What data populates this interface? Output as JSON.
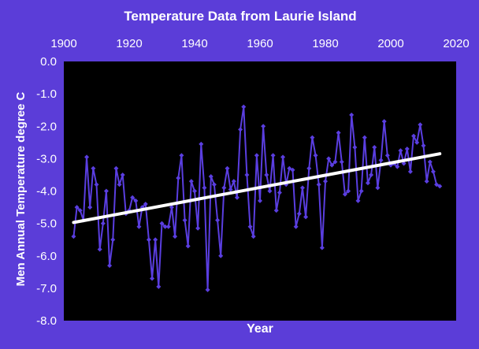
{
  "chart_data": {
    "type": "line",
    "title": "Temperature Data from Laurie Island",
    "xlabel": "Year",
    "ylabel": "Men Annual Temperature degree C",
    "xlim": [
      1900,
      2020
    ],
    "ylim": [
      -8.0,
      0.0
    ],
    "x_ticks": [
      "1900",
      "1920",
      "1940",
      "1960",
      "1980",
      "2000",
      "2020"
    ],
    "y_ticks": [
      "0.0",
      "-1.0",
      "-2.0",
      "-3.0",
      "-4.0",
      "-5.0",
      "-6.0",
      "-7.0",
      "-8.0"
    ],
    "x_axis_position": "top",
    "grid": false,
    "legend": "none",
    "colors": {
      "background": "#5b3dd8",
      "plot_area": "#000000",
      "series": "#5a3ee0",
      "trend": "#ffffff",
      "text": "#ffffff"
    },
    "series": [
      {
        "x": [
          1903,
          1904,
          1905,
          1906,
          1907,
          1908,
          1909,
          1910,
          1911,
          1912,
          1913,
          1914,
          1915,
          1916,
          1917,
          1918,
          1919,
          1920,
          1921,
          1922,
          1923,
          1924,
          1925,
          1926,
          1927,
          1928,
          1929,
          1930,
          1931,
          1932,
          1933,
          1934,
          1935,
          1936,
          1937,
          1938,
          1939,
          1940,
          1941,
          1942,
          1943,
          1944,
          1945,
          1946,
          1947,
          1948,
          1949,
          1950,
          1951,
          1952,
          1953,
          1954,
          1955,
          1956,
          1957,
          1958,
          1959,
          1960,
          1961,
          1962,
          1963,
          1964,
          1965,
          1966,
          1967,
          1968,
          1969,
          1970,
          1971,
          1972,
          1973,
          1974,
          1975,
          1976,
          1977,
          1978,
          1979,
          1980,
          1981,
          1982,
          1983,
          1984,
          1985,
          1986,
          1987,
          1988,
          1989,
          1990,
          1991,
          1992,
          1993,
          1994,
          1995,
          1996,
          1997,
          1998,
          1999,
          2000,
          2001,
          2002,
          2003,
          2004,
          2005,
          2006,
          2007,
          2008,
          2009,
          2010,
          2011,
          2012,
          2013,
          2014,
          2015
        ],
        "values": [
          -5.4,
          -4.5,
          -4.6,
          -4.9,
          -2.95,
          -4.5,
          -3.3,
          -3.8,
          -5.8,
          -5.0,
          -4.0,
          -6.3,
          -5.5,
          -3.3,
          -3.8,
          -3.5,
          -4.7,
          -4.6,
          -4.2,
          -4.3,
          -5.1,
          -4.5,
          -4.4,
          -5.5,
          -6.7,
          -5.5,
          -6.95,
          -5.0,
          -5.1,
          -5.1,
          -4.5,
          -5.4,
          -3.6,
          -2.9,
          -4.9,
          -5.7,
          -3.7,
          -4.0,
          -5.15,
          -2.55,
          -3.9,
          -7.05,
          -3.55,
          -3.8,
          -4.9,
          -6.0,
          -3.9,
          -3.3,
          -3.95,
          -3.7,
          -4.2,
          -2.1,
          -1.4,
          -3.5,
          -5.1,
          -5.4,
          -2.9,
          -4.3,
          -2.0,
          -3.5,
          -4.0,
          -2.9,
          -4.6,
          -4.05,
          -2.95,
          -3.8,
          -3.3,
          -3.35,
          -5.1,
          -4.7,
          -3.9,
          -4.8,
          -3.3,
          -2.35,
          -2.9,
          -3.8,
          -5.75,
          -3.7,
          -3.0,
          -3.2,
          -3.1,
          -2.2,
          -3.1,
          -4.1,
          -4.0,
          -1.65,
          -2.65,
          -4.3,
          -4.0,
          -2.35,
          -3.75,
          -3.5,
          -2.65,
          -3.9,
          -3.05,
          -1.85,
          -2.9,
          -3.2,
          -3.15,
          -3.25,
          -2.75,
          -3.15,
          -2.7,
          -3.4,
          -2.3,
          -2.5,
          -1.95,
          -2.6,
          -3.7,
          -3.1,
          -3.4,
          -3.8,
          -3.85
        ]
      }
    ],
    "trendline": {
      "x": [
        1903,
        2015
      ],
      "values": [
        -4.97,
        -2.85
      ]
    }
  }
}
